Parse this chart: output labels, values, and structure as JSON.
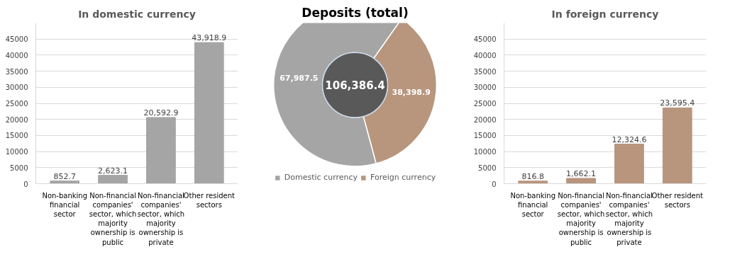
{
  "chart_data": [
    {
      "type": "bar",
      "title": "In domestic currency",
      "categories": [
        "Non-banking financial sector",
        "Non-financial companies' sector, which majority ownership is public",
        "Non-financial companies' sector, which majority ownership is private",
        "Other resident sectors"
      ],
      "values": [
        852.7,
        2623.1,
        20592.9,
        43918.9
      ],
      "value_labels": [
        "852.7",
        "2,623.1",
        "20,592.9",
        "43,918.9"
      ],
      "color": "#a5a5a5",
      "ylim": [
        0,
        50000
      ],
      "yticks": [
        0,
        5000,
        10000,
        15000,
        20000,
        25000,
        30000,
        35000,
        40000,
        45000
      ],
      "grid": "y",
      "legend": false
    },
    {
      "type": "donut",
      "title": "Deposits (total)",
      "categories": [
        "Domestic currency",
        "Foreign currency"
      ],
      "values": [
        67987.5,
        38398.9
      ],
      "colors": [
        "#a5a5a5",
        "#b8957d"
      ],
      "value_labels": [
        "67,987.5",
        "38,398.9"
      ],
      "annotations": [
        "106,386.4"
      ],
      "legend": "bottom"
    },
    {
      "type": "bar",
      "title": "In foreign currency",
      "categories": [
        "Non-banking financial sector",
        "Non-financial companies' sector, which majority ownership is public",
        "Non-financial companies' sector, which majority ownership is private",
        "Other resident sectors"
      ],
      "values": [
        816.8,
        1662.1,
        12324.6,
        23595.4
      ],
      "value_labels": [
        "816.8",
        "1,662.1",
        "12,324.6",
        "23,595.4"
      ],
      "color": "#b8957d",
      "ylim": [
        0,
        50000
      ],
      "yticks": [
        0,
        5000,
        10000,
        15000,
        20000,
        25000,
        30000,
        35000,
        40000,
        45000
      ],
      "grid": "y",
      "legend": false
    }
  ]
}
